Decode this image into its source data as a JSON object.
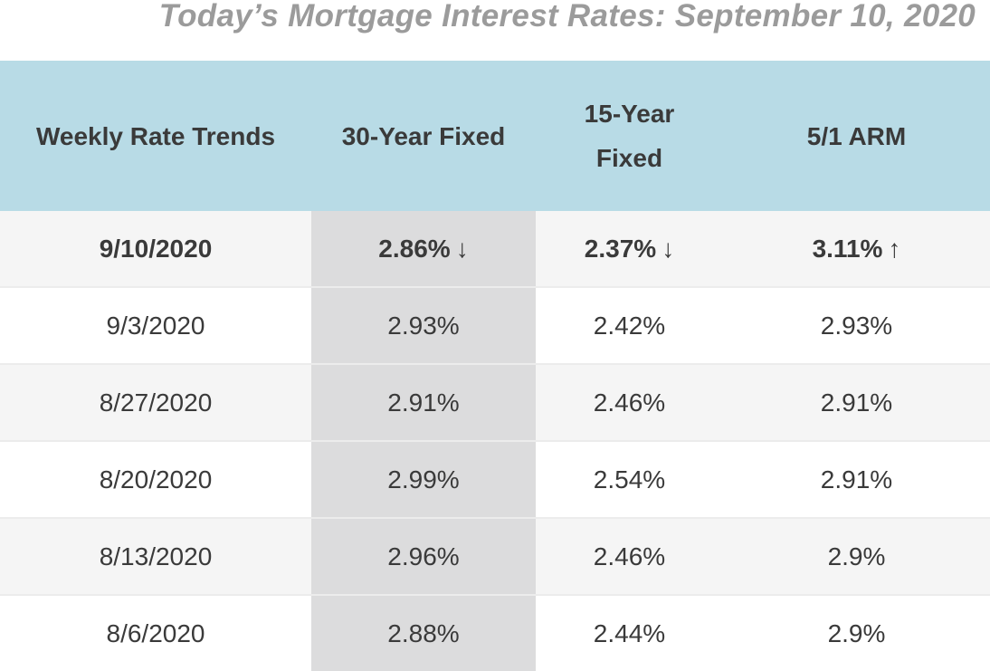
{
  "title": "Today’s Mortgage Interest Rates: September 10, 2020",
  "columns": [
    "Weekly Rate Trends",
    "30-Year Fixed",
    "15-Year Fixed",
    "5/1 ARM"
  ],
  "rows": [
    {
      "date": "9/10/2020",
      "fixed30": "2.86%",
      "fixed30_arrow": "↓",
      "fixed15": "2.37%",
      "fixed15_arrow": "↓",
      "arm51": "3.11%",
      "arm51_arrow": "↑"
    },
    {
      "date": "9/3/2020",
      "fixed30": "2.93%",
      "fixed15": "2.42%",
      "arm51": "2.93%"
    },
    {
      "date": "8/27/2020",
      "fixed30": "2.91%",
      "fixed15": "2.46%",
      "arm51": "2.91%"
    },
    {
      "date": "8/20/2020",
      "fixed30": "2.99%",
      "fixed15": "2.54%",
      "arm51": "2.91%"
    },
    {
      "date": "8/13/2020",
      "fixed30": "2.96%",
      "fixed15": "2.46%",
      "arm51": "2.9%"
    },
    {
      "date": "8/6/2020",
      "fixed30": "2.88%",
      "fixed15": "2.44%",
      "arm51": "2.9%"
    }
  ],
  "colors": {
    "header_background": "#b8dbe6",
    "highlight_column": "#dcdcdd",
    "row_stripe": "#f5f5f5",
    "title_text": "#9b9b9b"
  }
}
